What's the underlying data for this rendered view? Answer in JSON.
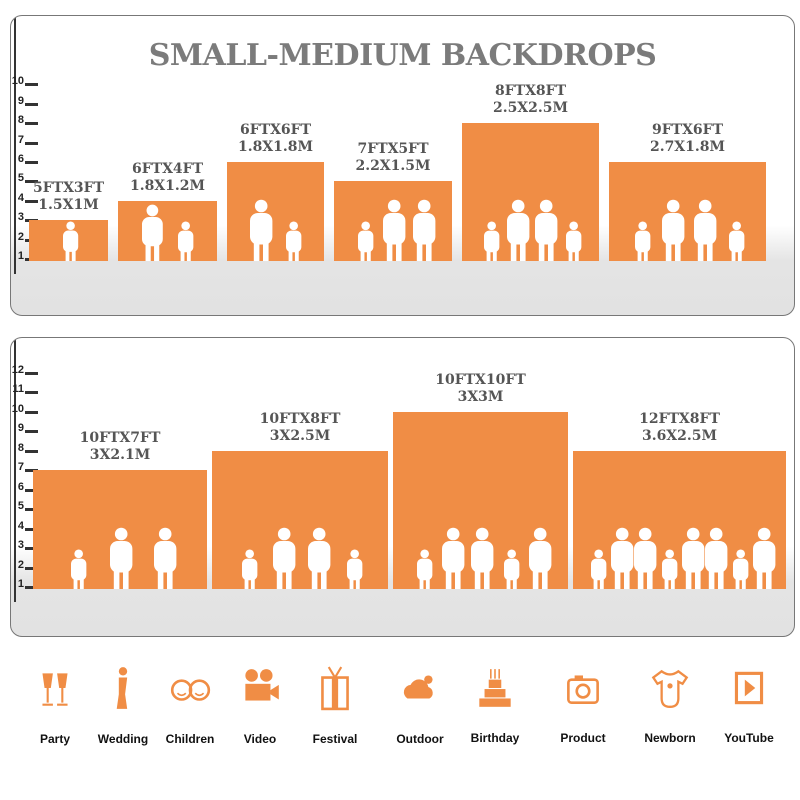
{
  "title": "SMALL-MEDIUM BACKDROPS",
  "accent_color": "#f08d45",
  "chart_data": [
    {
      "type": "bar",
      "title": "SMALL-MEDIUM BACKDROPS",
      "ylim": [
        1,
        10
      ],
      "yticks": [
        "1",
        "2",
        "3",
        "4",
        "5",
        "6",
        "7",
        "8",
        "9",
        "10"
      ],
      "bars": [
        {
          "label_ft": "5FTX3FT",
          "label_m": "1.5X1M",
          "top": 3,
          "people": 1
        },
        {
          "label_ft": "6FTX4FT",
          "label_m": "1.8X1.2M",
          "top": 4,
          "people": 2
        },
        {
          "label_ft": "6FTX6FT",
          "label_m": "1.8X1.8M",
          "top": 6,
          "people": 2
        },
        {
          "label_ft": "7FTX5FT",
          "label_m": "2.2X1.5M",
          "top": 5,
          "people": 3
        },
        {
          "label_ft": "8FTX8FT",
          "label_m": "2.5X2.5M",
          "top": 8,
          "people": 4
        },
        {
          "label_ft": "9FTX6FT",
          "label_m": "2.7X1.8M",
          "top": 6,
          "people": 4
        }
      ]
    },
    {
      "type": "bar",
      "ylim": [
        1,
        12
      ],
      "yticks": [
        "1",
        "2",
        "3",
        "4",
        "5",
        "6",
        "7",
        "8",
        "9",
        "10",
        "11",
        "12"
      ],
      "bars": [
        {
          "label_ft": "10FTX7FT",
          "label_m": "3X2.1M",
          "top": 7,
          "people": 3
        },
        {
          "label_ft": "10FTX8FT",
          "label_m": "3X2.5M",
          "top": 8,
          "people": 4
        },
        {
          "label_ft": "10FTX10FT",
          "label_m": "3X3M",
          "top": 10,
          "people": 5
        },
        {
          "label_ft": "12FTX8FT",
          "label_m": "3.6X2.5M",
          "top": 8,
          "people": 8
        }
      ]
    }
  ],
  "uses": [
    {
      "label": "Party",
      "icon": "wine-glasses-icon"
    },
    {
      "label": "Wedding",
      "icon": "couple-icon"
    },
    {
      "label": "Children",
      "icon": "kids-faces-icon"
    },
    {
      "label": "Video",
      "icon": "movie-camera-icon"
    },
    {
      "label": "Festival",
      "icon": "gift-box-icon"
    },
    {
      "label": "Outdoor",
      "icon": "cloud-icon"
    },
    {
      "label": "Birthday",
      "icon": "cake-icon"
    },
    {
      "label": "Product",
      "icon": "camera-icon"
    },
    {
      "label": "Newborn",
      "icon": "onesie-icon"
    },
    {
      "label": "YouTube",
      "icon": "play-icon"
    }
  ]
}
